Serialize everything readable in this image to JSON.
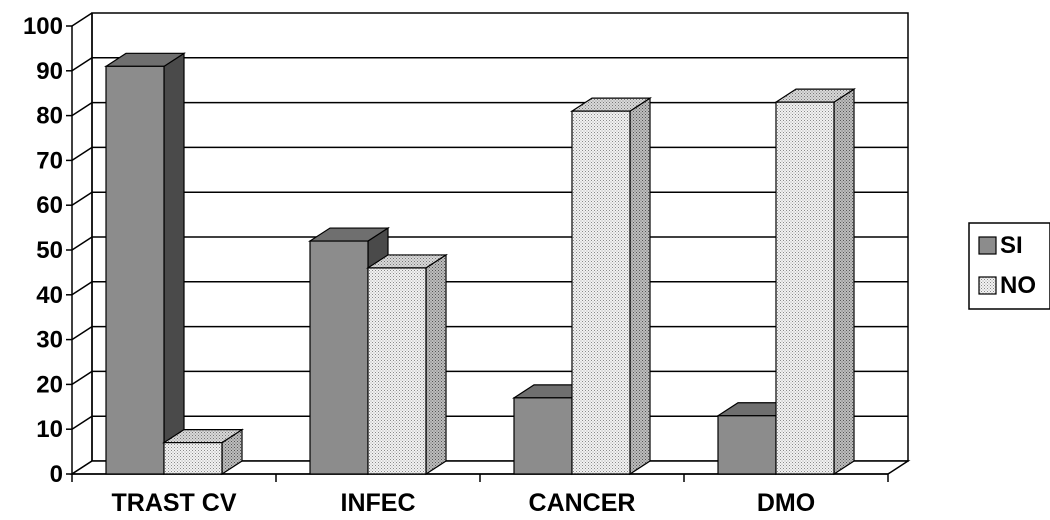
{
  "chart_data": {
    "type": "bar",
    "style": "3d-clustered",
    "categories": [
      "TRAST CV",
      "INFEC",
      "CANCER",
      "DMO"
    ],
    "series": [
      {
        "name": "SI",
        "values": [
          91,
          52,
          17,
          13
        ],
        "color": "#8c8c8c",
        "pattern": "solid"
      },
      {
        "name": "NO",
        "values": [
          7,
          46,
          81,
          83
        ],
        "color": "#e8e8e8",
        "pattern": "dotted"
      }
    ],
    "title": "",
    "xlabel": "",
    "ylabel": "",
    "ylim": [
      0,
      100
    ],
    "yticks": [
      0,
      10,
      20,
      30,
      40,
      50,
      60,
      70,
      80,
      90,
      100
    ],
    "grid": true,
    "legend": {
      "placement": "right",
      "entries": [
        "SI",
        "NO"
      ]
    }
  }
}
